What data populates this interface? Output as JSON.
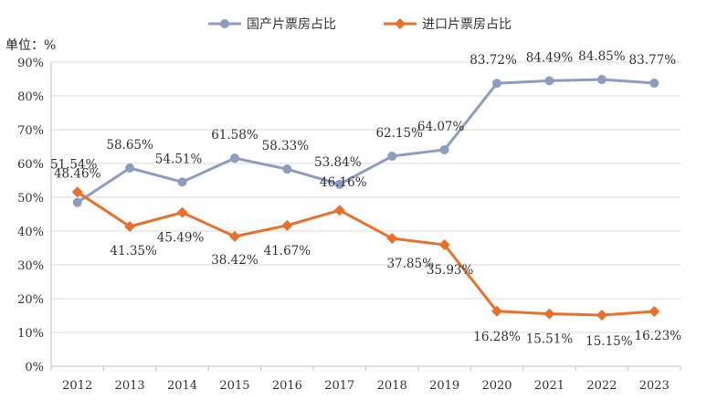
{
  "chart_data": {
    "type": "line",
    "unit_label": "单位：%",
    "categories": [
      "2012",
      "2013",
      "2014",
      "2015",
      "2016",
      "2017",
      "2018",
      "2019",
      "2020",
      "2021",
      "2022",
      "2023"
    ],
    "ylim": [
      0,
      90
    ],
    "y_ticks": [
      "0%",
      "10%",
      "20%",
      "30%",
      "40%",
      "50%",
      "60%",
      "70%",
      "80%",
      "90%"
    ],
    "grid": true,
    "legend_position": "top-center",
    "series": [
      {
        "name": "国产片票房占比",
        "color": "#8c9dbf",
        "marker": "circle",
        "values": [
          48.46,
          58.65,
          54.51,
          61.58,
          58.33,
          53.84,
          62.15,
          64.07,
          83.72,
          84.49,
          84.85,
          83.77
        ],
        "labels": [
          "48.46%",
          "58.65%",
          "54.51%",
          "61.58%",
          "58.33%",
          "53.84%",
          "62.15%",
          "64.07%",
          "83.72%",
          "84.49%",
          "84.85%",
          "83.77%"
        ]
      },
      {
        "name": "进口片票房占比",
        "color": "#e8702a",
        "marker": "diamond",
        "values": [
          51.54,
          41.35,
          45.49,
          38.42,
          41.67,
          46.16,
          37.85,
          35.93,
          16.28,
          15.51,
          15.15,
          16.23
        ],
        "labels": [
          "51.54%",
          "41.35%",
          "45.49%",
          "38.42%",
          "41.67%",
          "46.16%",
          "37.85%",
          "35.93%",
          "16.28%",
          "15.51%",
          "15.15%",
          "16.23%"
        ]
      }
    ]
  }
}
